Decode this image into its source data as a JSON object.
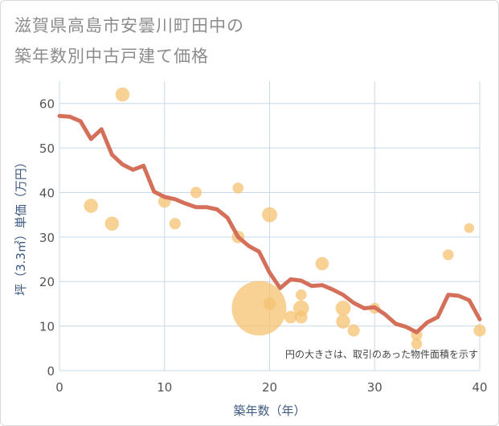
{
  "title_lines": [
    "滋賀県高島市安曇川町田中の",
    "築年数別中古戸建て価格"
  ],
  "colors": {
    "line": "#d4705a",
    "bubble": "#f5c272",
    "grid": "#c9d9ea",
    "axis_text": "#3d5a80"
  },
  "chart_data": {
    "type": "scatter",
    "title": "滋賀県高島市安曇川町田中の築年数別中古戸建て価格",
    "xlabel": "築年数（年）",
    "ylabel": "坪（3.3㎡）単価（万円）",
    "xlim": [
      0,
      40
    ],
    "ylim": [
      0,
      65
    ],
    "xticks": [
      0,
      10,
      20,
      30,
      40
    ],
    "yticks": [
      0,
      10,
      20,
      30,
      40,
      50,
      60
    ],
    "grid": true,
    "note": "円の大きさは、取引のあった物件面積を示す",
    "series": [
      {
        "name": "trend",
        "type": "line",
        "x": [
          0,
          1,
          2,
          3,
          4,
          5,
          6,
          7,
          8,
          9,
          10,
          11,
          12,
          13,
          14,
          15,
          16,
          17,
          18,
          19,
          20,
          21,
          22,
          23,
          24,
          25,
          26,
          27,
          28,
          29,
          30,
          31,
          32,
          33,
          34,
          35,
          36,
          37,
          38,
          39,
          40
        ],
        "values": [
          57.2,
          57,
          56,
          52,
          54.2,
          48.5,
          46.3,
          45.1,
          46,
          40.2,
          39,
          38.5,
          37.5,
          36.7,
          36.7,
          36.2,
          34.3,
          30,
          28,
          26.7,
          22,
          18.5,
          20.5,
          20.2,
          19,
          19.2,
          18.2,
          17,
          15.2,
          14,
          14.2,
          12.6,
          10.5,
          9.8,
          8.6,
          10.8,
          12,
          17,
          16.8,
          15.8,
          11.5
        ]
      },
      {
        "name": "transactions",
        "type": "bubble",
        "points": [
          {
            "x": 3,
            "y": 37,
            "size": 2
          },
          {
            "x": 5,
            "y": 33,
            "size": 2
          },
          {
            "x": 6,
            "y": 62,
            "size": 2
          },
          {
            "x": 10,
            "y": 38,
            "size": 1.6
          },
          {
            "x": 11,
            "y": 33,
            "size": 1.3
          },
          {
            "x": 13,
            "y": 40,
            "size": 1.3
          },
          {
            "x": 17,
            "y": 41,
            "size": 1.2
          },
          {
            "x": 17,
            "y": 30,
            "size": 1.6
          },
          {
            "x": 19,
            "y": 14,
            "size": 30
          },
          {
            "x": 20,
            "y": 35,
            "size": 2.3
          },
          {
            "x": 20,
            "y": 15,
            "size": 1.6
          },
          {
            "x": 22,
            "y": 12,
            "size": 1.6
          },
          {
            "x": 23,
            "y": 17,
            "size": 1.2
          },
          {
            "x": 23,
            "y": 14,
            "size": 2.5
          },
          {
            "x": 23,
            "y": 12,
            "size": 1.6
          },
          {
            "x": 25,
            "y": 24,
            "size": 1.8
          },
          {
            "x": 27,
            "y": 14,
            "size": 2.3
          },
          {
            "x": 27,
            "y": 11,
            "size": 2
          },
          {
            "x": 28,
            "y": 9,
            "size": 1.5
          },
          {
            "x": 30,
            "y": 14,
            "size": 1.2
          },
          {
            "x": 34,
            "y": 8,
            "size": 1.3
          },
          {
            "x": 34,
            "y": 6,
            "size": 1.2
          },
          {
            "x": 37,
            "y": 26,
            "size": 1.2
          },
          {
            "x": 39,
            "y": 32,
            "size": 1
          },
          {
            "x": 40,
            "y": 9,
            "size": 1.5
          }
        ]
      }
    ]
  }
}
